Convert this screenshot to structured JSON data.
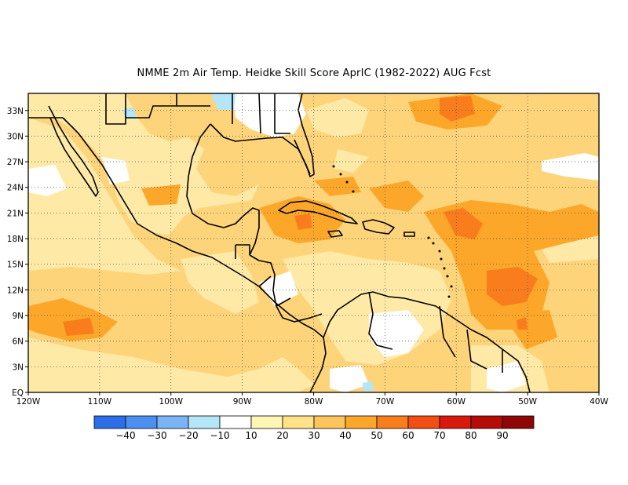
{
  "title": "NMME  2m Air Temp. Heidke Skill Score AprIC (1982-2022) AUG Fcst",
  "map": {
    "lon_range": [
      -120,
      -40
    ],
    "lat_range": [
      0,
      35
    ],
    "lon_ticks": [
      {
        "value": -120,
        "label": "120W"
      },
      {
        "value": -110,
        "label": "110W"
      },
      {
        "value": -100,
        "label": "100W"
      },
      {
        "value": -90,
        "label": "90W"
      },
      {
        "value": -80,
        "label": "80W"
      },
      {
        "value": -70,
        "label": "70W"
      },
      {
        "value": -60,
        "label": "60W"
      },
      {
        "value": -50,
        "label": "50W"
      },
      {
        "value": -40,
        "label": "40W"
      }
    ],
    "lat_ticks": [
      {
        "value": 0,
        "label": "EQ"
      },
      {
        "value": 3,
        "label": "3N"
      },
      {
        "value": 6,
        "label": "6N"
      },
      {
        "value": 9,
        "label": "9N"
      },
      {
        "value": 12,
        "label": "12N"
      },
      {
        "value": 15,
        "label": "15N"
      },
      {
        "value": 18,
        "label": "18N"
      },
      {
        "value": 21,
        "label": "21N"
      },
      {
        "value": 24,
        "label": "24N"
      },
      {
        "value": 27,
        "label": "27N"
      },
      {
        "value": 30,
        "label": "30N"
      },
      {
        "value": 33,
        "label": "33N"
      }
    ],
    "gridlines": "dotted"
  },
  "colorbar": {
    "labels": [
      "-40",
      "-30",
      "-20",
      "-10",
      "10",
      "20",
      "30",
      "40",
      "50",
      "60",
      "70",
      "80",
      "90"
    ],
    "colors": [
      "#2b6ee8",
      "#4a90f0",
      "#7ab4f5",
      "#b4e6f8",
      "#ffffff",
      "#fff5b4",
      "#fee289",
      "#fdc55c",
      "#fca72a",
      "#f97d1c",
      "#f24e12",
      "#d81a0c",
      "#b50c08",
      "#8f0606"
    ]
  },
  "colors": {
    "land_base": "#fee7a0",
    "ocean_base": "#fdd47a",
    "coast": "#000000"
  }
}
